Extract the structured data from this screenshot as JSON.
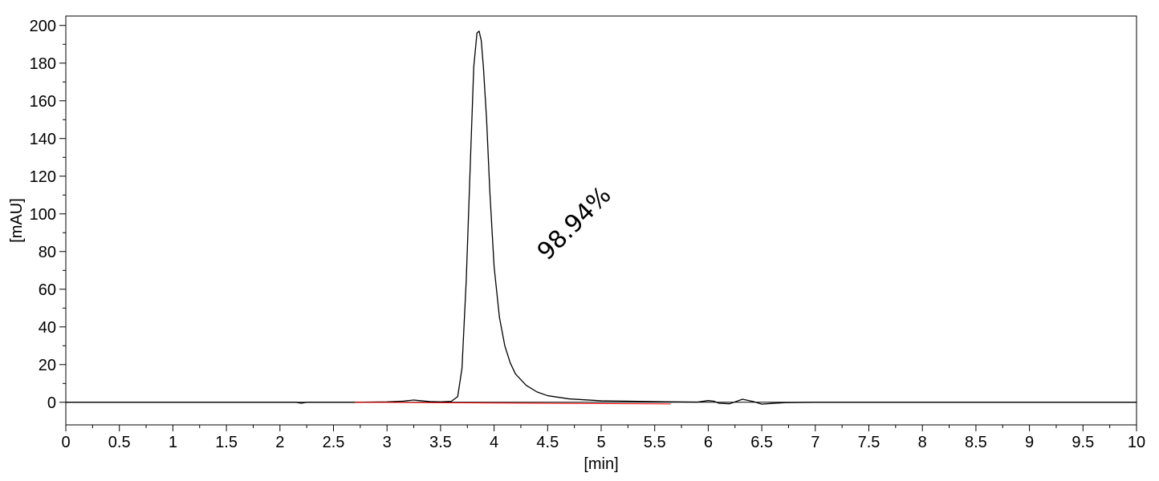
{
  "chart_data": {
    "type": "line",
    "title": "",
    "xlabel": "[min]",
    "ylabel": "[mAU]",
    "xlim": [
      0,
      10
    ],
    "ylim": [
      -12,
      205
    ],
    "grid": false,
    "legend": "none",
    "x_ticks": [
      0,
      0.5,
      1,
      1.5,
      2,
      2.5,
      3,
      3.5,
      4,
      4.5,
      5,
      5.5,
      6,
      6.5,
      7,
      7.5,
      8,
      8.5,
      9,
      9.5,
      10
    ],
    "x_tick_labels": [
      "0",
      "0.5",
      "1",
      "1.5",
      "2",
      "2.5",
      "3",
      "3.5",
      "4",
      "4.5",
      "5",
      "5.5",
      "6",
      "6.5",
      "7",
      "7.5",
      "8",
      "8.5",
      "9",
      "9.5",
      "10"
    ],
    "y_ticks": [
      0,
      20,
      40,
      60,
      80,
      100,
      120,
      140,
      160,
      180,
      200
    ],
    "y_tick_labels": [
      "0",
      "20",
      "40",
      "60",
      "80",
      "100",
      "120",
      "140",
      "160",
      "180",
      "200"
    ],
    "series": [
      {
        "color": "#000000",
        "x": [
          0,
          2.15,
          2.2,
          2.25,
          2.7,
          3.0,
          3.15,
          3.25,
          3.3,
          3.4,
          3.5,
          3.6,
          3.66,
          3.7,
          3.74,
          3.78,
          3.81,
          3.84,
          3.86,
          3.88,
          3.9,
          3.93,
          3.96,
          4.0,
          4.05,
          4.1,
          4.15,
          4.2,
          4.3,
          4.4,
          4.5,
          4.7,
          5.0,
          5.6,
          5.9,
          6.0,
          6.05,
          6.1,
          6.2,
          6.32,
          6.42,
          6.5,
          6.6,
          6.72,
          7.0,
          10
        ],
        "y": [
          0,
          0,
          -0.5,
          0,
          0,
          0.2,
          0.6,
          1.2,
          0.9,
          0.4,
          0.2,
          0.5,
          3,
          18,
          65,
          130,
          178,
          196,
          197,
          192,
          178,
          150,
          112,
          72,
          45,
          30,
          21,
          15,
          9,
          5.5,
          3.5,
          1.8,
          0.8,
          0.3,
          0.1,
          0.9,
          0.6,
          -0.5,
          -0.8,
          1.6,
          0.4,
          -1.0,
          -0.6,
          -0.2,
          0,
          0
        ]
      },
      {
        "color": "#ff0000",
        "x": [
          2.7,
          5.65
        ],
        "y": [
          0.0,
          -0.9
        ]
      }
    ],
    "annotations": [
      {
        "text": "98.94%",
        "x": 4.8,
        "y": 92,
        "rotation": -45
      }
    ]
  }
}
